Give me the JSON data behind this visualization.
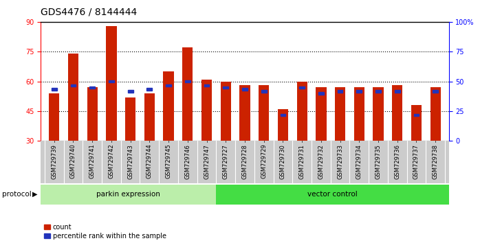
{
  "title": "GDS4476 / 8144444",
  "samples": [
    "GSM729739",
    "GSM729740",
    "GSM729741",
    "GSM729742",
    "GSM729743",
    "GSM729744",
    "GSM729745",
    "GSM729746",
    "GSM729747",
    "GSM729727",
    "GSM729728",
    "GSM729729",
    "GSM729730",
    "GSM729731",
    "GSM729732",
    "GSM729733",
    "GSM729734",
    "GSM729735",
    "GSM729736",
    "GSM729737",
    "GSM729738"
  ],
  "red_values": [
    54,
    74,
    57,
    88,
    52,
    54,
    65,
    77,
    61,
    60,
    58,
    58,
    46,
    60,
    57,
    57,
    57,
    57,
    58,
    48,
    57
  ],
  "blue_values": [
    56,
    58,
    57,
    60,
    55,
    56,
    58,
    60,
    58,
    57,
    56,
    55,
    43,
    57,
    54,
    55,
    55,
    55,
    55,
    43,
    55
  ],
  "groups": [
    {
      "label": "parkin expression",
      "start": 0,
      "end": 9,
      "color": "#bbeeaa"
    },
    {
      "label": "vector control",
      "start": 9,
      "end": 21,
      "color": "#44dd44"
    }
  ],
  "ylim_left": [
    30,
    90
  ],
  "ylim_right": [
    0,
    100
  ],
  "yticks_left": [
    30,
    45,
    60,
    75,
    90
  ],
  "yticks_right": [
    0,
    25,
    50,
    75,
    100
  ],
  "ytick_labels_right": [
    "0",
    "25",
    "50",
    "75",
    "100%"
  ],
  "bar_color": "#cc2200",
  "dot_color": "#2233bb",
  "xtick_bg": "#cccccc",
  "bar_width": 0.55,
  "protocol_label": "protocol",
  "legend_count": "count",
  "legend_pct": "percentile rank within the sample",
  "grid_yticks": [
    45,
    60,
    75
  ]
}
